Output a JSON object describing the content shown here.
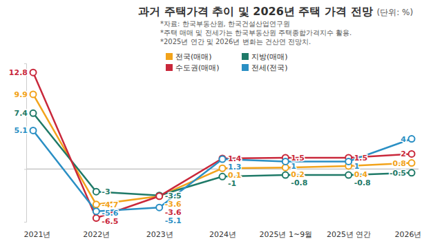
{
  "chart_data": {
    "type": "line",
    "title": "과거 주택가격 추이 및 2026년 주택 가격 전망",
    "subtitle": "(단위: %)",
    "annotations": [
      "*자료: 한국부동산원, 한국건설산업연구원",
      "*주택 매매 및 전세가는 한국부동산원 주택종합가격지수 활용.",
      "*2025년 연간 및 2026년 변화는 건산연 전망치."
    ],
    "categories": [
      "2021년",
      "2022년",
      "2023년",
      "2024년",
      "2025년 1~9월",
      "2025년 연간",
      "2026년"
    ],
    "series": [
      {
        "name": "전국(매매)",
        "color": "#f2a31b",
        "values": [
          9.9,
          -4.7,
          -3.6,
          0.1,
          0.2,
          0.4,
          0.8
        ]
      },
      {
        "name": "지방(매매)",
        "color": "#1f7a68",
        "values": [
          7.4,
          -3,
          -3.5,
          -1,
          -0.8,
          -0.8,
          -0.5
        ]
      },
      {
        "name": "수도권(매매)",
        "color": "#c9283b",
        "values": [
          12.8,
          -6.5,
          -3.6,
          1.4,
          1.5,
          1.5,
          2
        ]
      },
      {
        "name": "전세(전국)",
        "color": "#2a8fc4",
        "values": [
          5.1,
          -5.6,
          -5.1,
          1.3,
          1,
          1,
          4
        ]
      }
    ],
    "ylim": [
      -7,
      14
    ],
    "yticks": [
      0
    ],
    "grid": true,
    "tick_labels": "x",
    "data_labels": true,
    "marker": "circle",
    "legend": "top"
  }
}
